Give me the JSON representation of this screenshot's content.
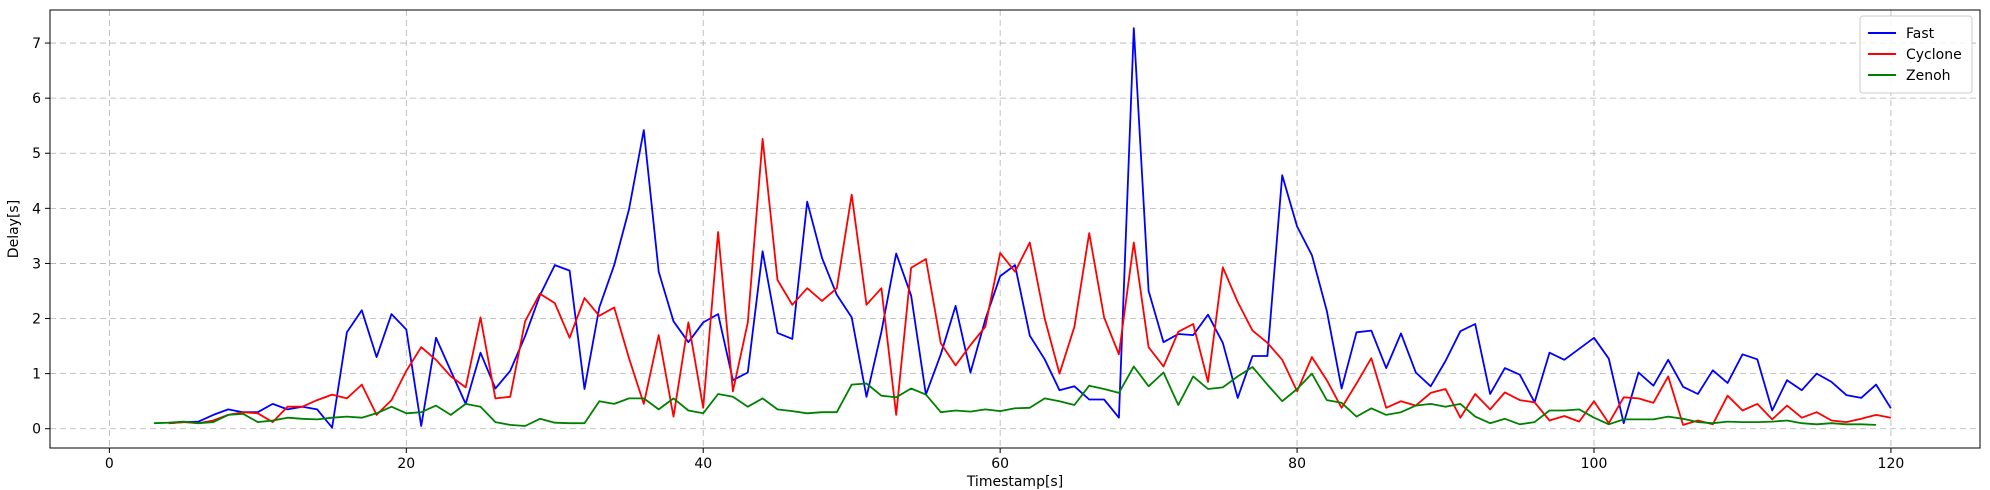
{
  "chart_data": {
    "type": "line",
    "title": "",
    "xlabel": "Timestamp[s]",
    "ylabel": "Delay[s]",
    "xlim": [
      -4,
      126
    ],
    "ylim": [
      -0.35,
      7.6
    ],
    "xticks": [
      0,
      20,
      40,
      60,
      80,
      100,
      120
    ],
    "yticks": [
      0,
      1,
      2,
      3,
      4,
      5,
      6,
      7
    ],
    "grid": true,
    "legend_position": "top-right",
    "series": [
      {
        "name": "Fast",
        "color": "#0000ff",
        "x": [
          4,
          5,
          6,
          7,
          8,
          9,
          10,
          11,
          12,
          13,
          14,
          15,
          16,
          17,
          18,
          19,
          20,
          21,
          22,
          23,
          24,
          25,
          26,
          27,
          28,
          29,
          30,
          31,
          32,
          33,
          34,
          35,
          36,
          37,
          38,
          39,
          40,
          41,
          42,
          43,
          44,
          45,
          46,
          47,
          48,
          49,
          50,
          51,
          52,
          53,
          54,
          55,
          56,
          57,
          58,
          59,
          60,
          61,
          62,
          63,
          64,
          65,
          66,
          67,
          68,
          69,
          70,
          71,
          72,
          73,
          74,
          75,
          76,
          77,
          78,
          79,
          80,
          81,
          82,
          83,
          84,
          85,
          86,
          87,
          88,
          89,
          90,
          91,
          92,
          93,
          94,
          95,
          96,
          97,
          98,
          99,
          100,
          101,
          102,
          103,
          104,
          105,
          106,
          107,
          108,
          109,
          110,
          111,
          112,
          113,
          114,
          115,
          116,
          117,
          118,
          119,
          120
        ],
        "y": [
          0.1,
          0.12,
          0.13,
          0.25,
          0.35,
          0.3,
          0.3,
          0.45,
          0.35,
          0.4,
          0.35,
          0.02,
          1.75,
          2.15,
          1.3,
          2.08,
          1.8,
          0.05,
          1.65,
          1.05,
          0.45,
          1.38,
          0.73,
          1.05,
          1.68,
          2.42,
          2.97,
          2.87,
          0.72,
          2.2,
          2.97,
          3.98,
          5.42,
          2.85,
          1.95,
          1.57,
          1.93,
          2.08,
          0.88,
          1.02,
          3.22,
          1.74,
          1.63,
          4.12,
          3.1,
          2.43,
          2.02,
          0.58,
          1.76,
          3.18,
          2.42,
          0.62,
          1.35,
          2.23,
          1.02,
          1.98,
          2.77,
          2.97,
          1.69,
          1.26,
          0.7,
          0.77,
          0.53,
          0.53,
          0.2,
          7.27,
          2.5,
          1.57,
          1.72,
          1.7,
          2.07,
          1.56,
          0.56,
          1.32,
          1.32,
          4.6,
          3.67,
          3.15,
          2.14,
          0.73,
          1.75,
          1.78,
          1.1,
          1.73,
          1.02,
          0.77,
          1.23,
          1.77,
          1.9,
          0.63,
          1.1,
          0.98,
          0.48,
          1.38,
          1.25,
          1.45,
          1.65,
          1.27,
          0.1,
          1.02,
          0.78,
          1.25,
          0.76,
          0.63,
          1.06,
          0.83,
          1.35,
          1.26,
          0.33,
          0.88,
          0.7,
          1.0,
          0.85,
          0.61,
          0.56,
          0.8,
          0.37
        ]
      },
      {
        "name": "Cyclone",
        "color": "#ff0000",
        "x": [
          4,
          5,
          6,
          7,
          8,
          9,
          10,
          11,
          12,
          13,
          14,
          15,
          16,
          17,
          18,
          19,
          20,
          21,
          22,
          23,
          24,
          25,
          26,
          27,
          28,
          29,
          30,
          31,
          32,
          33,
          34,
          35,
          36,
          37,
          38,
          39,
          40,
          41,
          42,
          43,
          44,
          45,
          46,
          47,
          48,
          49,
          50,
          51,
          52,
          53,
          54,
          55,
          56,
          57,
          58,
          59,
          60,
          61,
          62,
          63,
          64,
          65,
          66,
          67,
          68,
          69,
          70,
          71,
          72,
          73,
          74,
          75,
          76,
          77,
          78,
          79,
          80,
          81,
          82,
          83,
          84,
          85,
          86,
          87,
          88,
          89,
          90,
          91,
          92,
          93,
          94,
          95,
          96,
          97,
          98,
          99,
          100,
          101,
          102,
          103,
          104,
          105,
          106,
          107,
          108,
          109,
          110,
          111,
          112,
          113,
          114,
          115,
          116,
          117,
          118,
          119,
          120
        ],
        "y": [
          0.1,
          0.12,
          0.1,
          0.15,
          0.25,
          0.3,
          0.28,
          0.12,
          0.4,
          0.4,
          0.52,
          0.62,
          0.55,
          0.8,
          0.25,
          0.52,
          1.05,
          1.48,
          1.25,
          0.95,
          0.75,
          2.02,
          0.55,
          0.58,
          1.95,
          2.45,
          2.28,
          1.65,
          2.37,
          2.05,
          2.2,
          1.28,
          0.45,
          1.7,
          0.22,
          1.93,
          0.38,
          3.57,
          0.68,
          1.93,
          5.26,
          2.7,
          2.25,
          2.55,
          2.32,
          2.55,
          4.25,
          2.25,
          2.55,
          0.25,
          2.92,
          3.08,
          1.55,
          1.15,
          1.52,
          1.85,
          3.19,
          2.85,
          3.38,
          2.0,
          1.0,
          1.85,
          3.55,
          2.02,
          1.35,
          3.38,
          1.48,
          1.13,
          1.76,
          1.9,
          0.85,
          2.93,
          2.3,
          1.78,
          1.56,
          1.25,
          0.68,
          1.3,
          0.88,
          0.38,
          0.82,
          1.28,
          0.38,
          0.5,
          0.42,
          0.65,
          0.72,
          0.2,
          0.63,
          0.35,
          0.66,
          0.52,
          0.48,
          0.15,
          0.23,
          0.13,
          0.5,
          0.1,
          0.57,
          0.55,
          0.47,
          0.95,
          0.07,
          0.15,
          0.08,
          0.6,
          0.33,
          0.45,
          0.17,
          0.42,
          0.2,
          0.3,
          0.15,
          0.12,
          0.18,
          0.25,
          0.2
        ]
      },
      {
        "name": "Zenoh",
        "color": "#008000",
        "x": [
          3,
          4,
          5,
          6,
          7,
          8,
          9,
          10,
          11,
          12,
          13,
          14,
          15,
          16,
          17,
          18,
          19,
          20,
          21,
          22,
          23,
          24,
          25,
          26,
          27,
          28,
          29,
          30,
          31,
          32,
          33,
          34,
          35,
          36,
          37,
          38,
          39,
          40,
          41,
          42,
          43,
          44,
          45,
          46,
          47,
          48,
          49,
          50,
          51,
          52,
          53,
          54,
          55,
          56,
          57,
          58,
          59,
          60,
          61,
          62,
          63,
          64,
          65,
          66,
          67,
          68,
          69,
          70,
          71,
          72,
          73,
          74,
          75,
          76,
          77,
          78,
          79,
          80,
          81,
          82,
          83,
          84,
          85,
          86,
          87,
          88,
          89,
          90,
          91,
          92,
          93,
          94,
          95,
          96,
          97,
          98,
          99,
          100,
          101,
          102,
          103,
          104,
          105,
          106,
          107,
          108,
          109,
          110,
          111,
          112,
          113,
          114,
          115,
          116,
          117,
          118,
          119
        ],
        "y": [
          0.1,
          0.11,
          0.13,
          0.1,
          0.12,
          0.25,
          0.27,
          0.12,
          0.15,
          0.2,
          0.18,
          0.17,
          0.2,
          0.22,
          0.2,
          0.28,
          0.4,
          0.28,
          0.3,
          0.42,
          0.25,
          0.45,
          0.4,
          0.12,
          0.07,
          0.05,
          0.18,
          0.11,
          0.1,
          0.1,
          0.5,
          0.45,
          0.55,
          0.55,
          0.35,
          0.55,
          0.33,
          0.28,
          0.63,
          0.58,
          0.4,
          0.55,
          0.35,
          0.32,
          0.28,
          0.3,
          0.3,
          0.8,
          0.82,
          0.6,
          0.57,
          0.73,
          0.62,
          0.3,
          0.33,
          0.31,
          0.35,
          0.32,
          0.37,
          0.38,
          0.55,
          0.5,
          0.43,
          0.78,
          0.72,
          0.65,
          1.13,
          0.77,
          1.02,
          0.43,
          0.95,
          0.72,
          0.75,
          0.95,
          1.12,
          0.8,
          0.5,
          0.72,
          1.0,
          0.52,
          0.47,
          0.22,
          0.37,
          0.25,
          0.3,
          0.42,
          0.45,
          0.4,
          0.45,
          0.22,
          0.1,
          0.18,
          0.08,
          0.12,
          0.33,
          0.33,
          0.35,
          0.2,
          0.08,
          0.17,
          0.17,
          0.17,
          0.22,
          0.18,
          0.12,
          0.1,
          0.13,
          0.12,
          0.12,
          0.13,
          0.15,
          0.1,
          0.08,
          0.1,
          0.08,
          0.08,
          0.07
        ]
      }
    ]
  }
}
